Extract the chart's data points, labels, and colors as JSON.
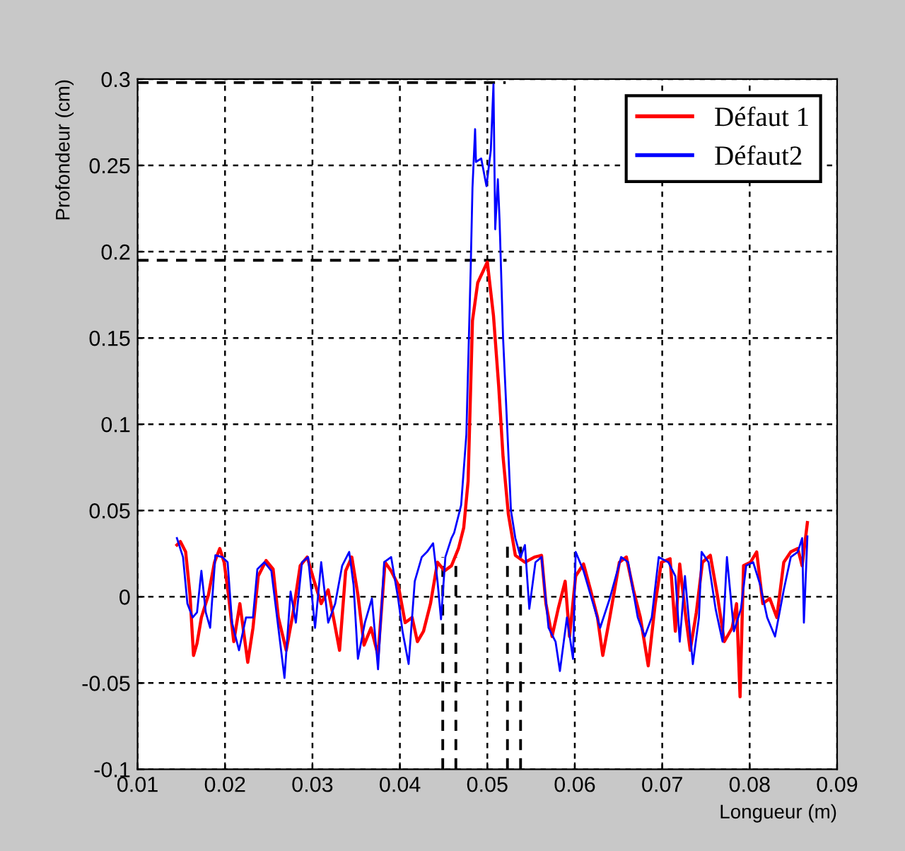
{
  "chart_data": {
    "type": "line",
    "xlabel": "Longueur (m)",
    "ylabel": "Profondeur (cm)",
    "xlim": [
      0.01,
      0.09
    ],
    "xticks": [
      0.01,
      0.02,
      0.03,
      0.04,
      0.05,
      0.06,
      0.07,
      0.08,
      0.09
    ],
    "ylim": [
      -0.1,
      0.3
    ],
    "yticks": [
      -0.1,
      -0.05,
      0,
      0.05,
      0.1,
      0.15,
      0.2,
      0.25,
      0.3
    ],
    "grid": true,
    "legend": "top right",
    "line_style": "solid",
    "marker": "none",
    "series": [
      {
        "name": "Défaut 1",
        "color": "#ff0000",
        "x": [
          0.0145,
          0.0149,
          0.0155,
          0.016,
          0.0164,
          0.0168,
          0.0173,
          0.0181,
          0.0188,
          0.0194,
          0.0199,
          0.0204,
          0.021,
          0.0217,
          0.0226,
          0.0232,
          0.0238,
          0.0247,
          0.0255,
          0.0261,
          0.027,
          0.0278,
          0.0286,
          0.0294,
          0.0302,
          0.031,
          0.0318,
          0.0324,
          0.0331,
          0.0338,
          0.0345,
          0.0352,
          0.0359,
          0.0367,
          0.0375,
          0.0383,
          0.039,
          0.0398,
          0.0406,
          0.0414,
          0.042,
          0.0427,
          0.0435,
          0.0443,
          0.0451,
          0.0459,
          0.0467,
          0.0473,
          0.0478,
          0.0483,
          0.0489,
          0.05,
          0.0507,
          0.0513,
          0.0518,
          0.0524,
          0.0532,
          0.0543,
          0.0554,
          0.0562,
          0.0567,
          0.0574,
          0.0581,
          0.0589,
          0.0594,
          0.0601,
          0.061,
          0.0618,
          0.0626,
          0.0632,
          0.064,
          0.0651,
          0.0659,
          0.0667,
          0.0675,
          0.0684,
          0.0692,
          0.0699,
          0.0709,
          0.0715,
          0.072,
          0.0727,
          0.0732,
          0.0739,
          0.0746,
          0.0755,
          0.0763,
          0.0771,
          0.078,
          0.0785,
          0.0789,
          0.0793,
          0.0801,
          0.0808,
          0.0815,
          0.0823,
          0.0831,
          0.0839,
          0.0847,
          0.0855,
          0.086,
          0.0866
        ],
        "values": [
          0.03,
          0.032,
          0.026,
          0.001,
          -0.034,
          -0.027,
          -0.012,
          0.001,
          0.02,
          0.028,
          0.02,
          0.001,
          -0.026,
          -0.004,
          -0.038,
          -0.018,
          0.012,
          0.021,
          0.016,
          -0.012,
          -0.031,
          -0.009,
          0.018,
          0.023,
          0.009,
          -0.004,
          0.004,
          -0.012,
          -0.031,
          0.015,
          0.023,
          0.001,
          -0.028,
          -0.018,
          -0.034,
          0.02,
          0.015,
          0.007,
          -0.015,
          -0.012,
          -0.026,
          -0.02,
          -0.004,
          0.02,
          0.015,
          0.018,
          0.028,
          0.04,
          0.067,
          0.16,
          0.182,
          0.194,
          0.163,
          0.122,
          0.081,
          0.048,
          0.024,
          0.02,
          0.023,
          0.024,
          -0.004,
          -0.023,
          -0.007,
          0.009,
          -0.023,
          0.012,
          0.019,
          0.004,
          -0.012,
          -0.034,
          -0.012,
          0.02,
          0.023,
          0.004,
          -0.012,
          -0.04,
          -0.004,
          0.02,
          0.022,
          -0.02,
          0.019,
          -0.012,
          -0.031,
          -0.009,
          0.02,
          0.024,
          0.001,
          -0.026,
          -0.018,
          -0.004,
          -0.058,
          0.018,
          0.02,
          0.026,
          -0.004,
          -0.001,
          -0.012,
          0.02,
          0.026,
          0.028,
          0.018,
          0.043
        ]
      },
      {
        "name": "Défaut2",
        "color": "#0000ff",
        "x": [
          0.0145,
          0.0152,
          0.0157,
          0.0163,
          0.0168,
          0.0173,
          0.0178,
          0.0183,
          0.0189,
          0.0197,
          0.0203,
          0.0208,
          0.0216,
          0.0224,
          0.0232,
          0.0237,
          0.0245,
          0.0253,
          0.0261,
          0.0268,
          0.0275,
          0.0281,
          0.0288,
          0.0295,
          0.0303,
          0.031,
          0.0318,
          0.0326,
          0.0334,
          0.0342,
          0.0347,
          0.0352,
          0.036,
          0.0368,
          0.0375,
          0.0382,
          0.039,
          0.0398,
          0.0403,
          0.041,
          0.0417,
          0.0425,
          0.0431,
          0.0438,
          0.0443,
          0.0447,
          0.0452,
          0.0459,
          0.0462,
          0.047,
          0.0476,
          0.0481,
          0.0483,
          0.0486,
          0.0487,
          0.0493,
          0.0499,
          0.0504,
          0.0507,
          0.0509,
          0.0512,
          0.0514,
          0.0518,
          0.0523,
          0.0527,
          0.0532,
          0.0538,
          0.0543,
          0.0548,
          0.0555,
          0.0562,
          0.057,
          0.0578,
          0.0583,
          0.0591,
          0.0598,
          0.0601,
          0.061,
          0.0621,
          0.0629,
          0.064,
          0.0653,
          0.0661,
          0.0672,
          0.068,
          0.0688,
          0.0696,
          0.0707,
          0.0715,
          0.072,
          0.0726,
          0.0735,
          0.0742,
          0.0745,
          0.0753,
          0.0761,
          0.0769,
          0.0774,
          0.0782,
          0.079,
          0.0796,
          0.0804,
          0.0812,
          0.082,
          0.0829,
          0.0839,
          0.0847,
          0.0855,
          0.086,
          0.0862,
          0.0866
        ],
        "values": [
          0.034,
          0.023,
          -0.004,
          -0.012,
          -0.009,
          0.015,
          -0.009,
          -0.018,
          0.024,
          0.023,
          0.02,
          -0.015,
          -0.031,
          -0.012,
          -0.012,
          0.016,
          0.02,
          0.015,
          -0.018,
          -0.047,
          0.003,
          -0.015,
          0.02,
          0.023,
          -0.018,
          0.02,
          -0.015,
          -0.004,
          0.018,
          0.026,
          0.007,
          -0.036,
          -0.015,
          -0.001,
          -0.042,
          0.02,
          0.023,
          -0.001,
          -0.02,
          -0.039,
          0.009,
          0.023,
          0.026,
          0.031,
          0.009,
          -0.013,
          0.023,
          0.034,
          0.037,
          0.053,
          0.094,
          0.191,
          0.237,
          0.271,
          0.252,
          0.254,
          0.238,
          0.259,
          0.297,
          0.213,
          0.242,
          0.218,
          0.15,
          0.095,
          0.05,
          0.034,
          0.023,
          0.03,
          -0.007,
          0.02,
          0.023,
          -0.018,
          -0.026,
          -0.043,
          -0.012,
          -0.036,
          0.026,
          0.015,
          -0.004,
          -0.018,
          -0.001,
          0.023,
          0.02,
          -0.012,
          -0.023,
          -0.012,
          0.023,
          0.02,
          0.012,
          -0.026,
          0.012,
          -0.039,
          -0.012,
          0.026,
          0.02,
          -0.007,
          -0.026,
          0.023,
          -0.02,
          -0.007,
          0.018,
          0.02,
          0.007,
          -0.012,
          -0.023,
          0.004,
          0.023,
          0.026,
          0.034,
          -0.015,
          0.035
        ]
      },
      {
        "color": "#000000",
        "line_style": "dashed",
        "x": [
          0.01,
          0.0521
        ],
        "values": [
          0.298,
          0.298
        ]
      },
      {
        "color": "#000000",
        "line_style": "dashed",
        "x": [
          0.01,
          0.0522
        ],
        "values": [
          0.195,
          0.195
        ]
      },
      {
        "color": "#000000",
        "line_style": "dashed",
        "x": [
          0.0449,
          0.0449
        ],
        "values": [
          -0.1,
          0.023
        ]
      },
      {
        "color": "#000000",
        "line_style": "dashed",
        "x": [
          0.0464,
          0.0464
        ],
        "values": [
          -0.1,
          0.023
        ]
      },
      {
        "color": "#000000",
        "line_style": "dashed",
        "x": [
          0.0523,
          0.0523
        ],
        "values": [
          -0.1,
          0.031
        ]
      },
      {
        "color": "#000000",
        "line_style": "dashed",
        "x": [
          0.0538,
          0.0538
        ],
        "values": [
          -0.1,
          0.031
        ]
      }
    ]
  }
}
